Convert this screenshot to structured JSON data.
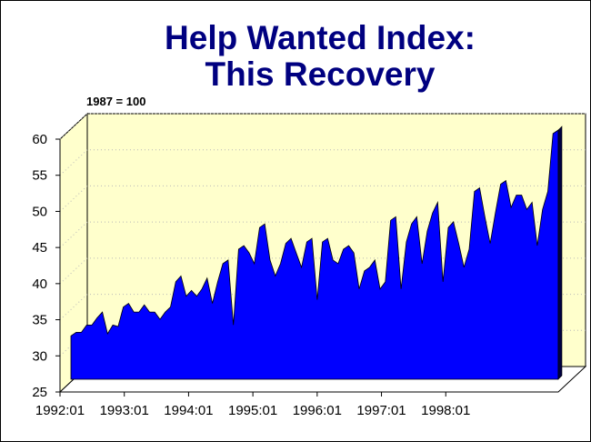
{
  "title_line1": "Help Wanted Index:",
  "title_line2": "This Recovery",
  "unit_label": "1987 = 100",
  "colors": {
    "title": "#000080",
    "wall": "#ffffcc",
    "area": "#0000ff",
    "area_edge": "#000000",
    "grid": "#b8b8b8"
  },
  "chart_data": {
    "type": "area",
    "title": "Help Wanted Index: This Recovery",
    "subtitle": "1987 = 100",
    "xlabel": "",
    "ylabel": "",
    "ylim": [
      25,
      60
    ],
    "yticks": [
      25,
      30,
      35,
      40,
      45,
      50,
      55,
      60
    ],
    "xticks": [
      "1992:01",
      "1993:01",
      "1994:01",
      "1995:01",
      "1996:01",
      "1997:01",
      "1998:01"
    ],
    "grid": true,
    "three_d": true,
    "series": [
      {
        "values": [
          31,
          31.5,
          31.5,
          32.5,
          32.5,
          33.5,
          34.3,
          31.3,
          32.5,
          32.3,
          35,
          35.5,
          34.3,
          34.3,
          35.3,
          34.3,
          34.3,
          33.3,
          34.3,
          35,
          38.5,
          39.3,
          36.5,
          37.3,
          36.5,
          37.5,
          39,
          35.5,
          38.5,
          41,
          41.5,
          32.5,
          43,
          43.5,
          42.5,
          41,
          46,
          46.5,
          41.5,
          39.3,
          41,
          43.8,
          44.5,
          42.5,
          40.5,
          44,
          44.5,
          36,
          44,
          44.5,
          41.5,
          41,
          43,
          43.5,
          42.5,
          37.5,
          40,
          40.5,
          41.5,
          37.5,
          38.5,
          47,
          47.5,
          37.5,
          44,
          46.5,
          47.5,
          41,
          45.5,
          48,
          49.5,
          38.5,
          46,
          46.8,
          43.8,
          40.5,
          43,
          51,
          51.5,
          47.5,
          43.8,
          48,
          52,
          52.5,
          48.8,
          50.5,
          50.5,
          48.5,
          49.5,
          43.5,
          48.5,
          51,
          59,
          59.5
        ]
      }
    ]
  }
}
